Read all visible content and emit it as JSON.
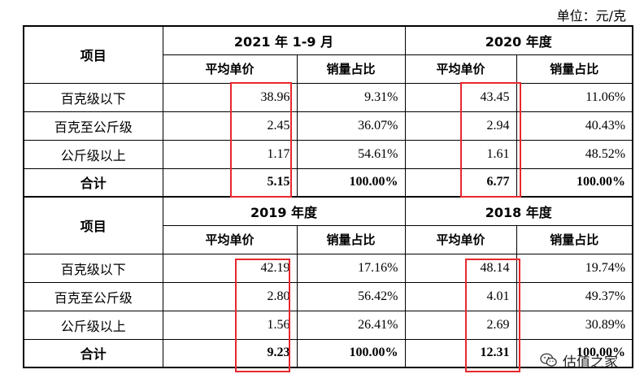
{
  "unit_label": "单位：元/克",
  "column_headers": {
    "item": "项目",
    "avg_price": "平均单价",
    "sales_share": "销量占比"
  },
  "section1": {
    "period_a": "2021 年 1-9 月",
    "period_b": "2020 年度",
    "rows": [
      {
        "label": "百克级以下",
        "a_price": "38.96",
        "a_share": "9.31%",
        "b_price": "43.45",
        "b_share": "11.06%"
      },
      {
        "label": "百克至公斤级",
        "a_price": "2.45",
        "a_share": "36.07%",
        "b_price": "2.94",
        "b_share": "40.43%"
      },
      {
        "label": "公斤级以上",
        "a_price": "1.17",
        "a_share": "54.61%",
        "b_price": "1.61",
        "b_share": "48.52%"
      },
      {
        "label": "合计",
        "a_price": "5.15",
        "a_share": "100.00%",
        "b_price": "6.77",
        "b_share": "100.00%"
      }
    ]
  },
  "section2": {
    "period_a": "2019 年度",
    "period_b": "2018 年度",
    "rows": [
      {
        "label": "百克级以下",
        "a_price": "42.19",
        "a_share": "17.16%",
        "b_price": "48.14",
        "b_share": "19.74%"
      },
      {
        "label": "百克至公斤级",
        "a_price": "2.80",
        "a_share": "56.42%",
        "b_price": "4.01",
        "b_share": "49.37%"
      },
      {
        "label": "公斤级以上",
        "a_price": "1.56",
        "a_share": "26.41%",
        "b_price": "2.69",
        "b_share": "30.89%"
      },
      {
        "label": "合计",
        "a_price": "9.23",
        "a_share": "100.00%",
        "b_price": "12.31",
        "b_share": "100.00%"
      }
    ]
  },
  "watermark": {
    "text": "估值之家",
    "icon": "wechat-icon"
  },
  "colors": {
    "highlight": "#e8282e"
  }
}
